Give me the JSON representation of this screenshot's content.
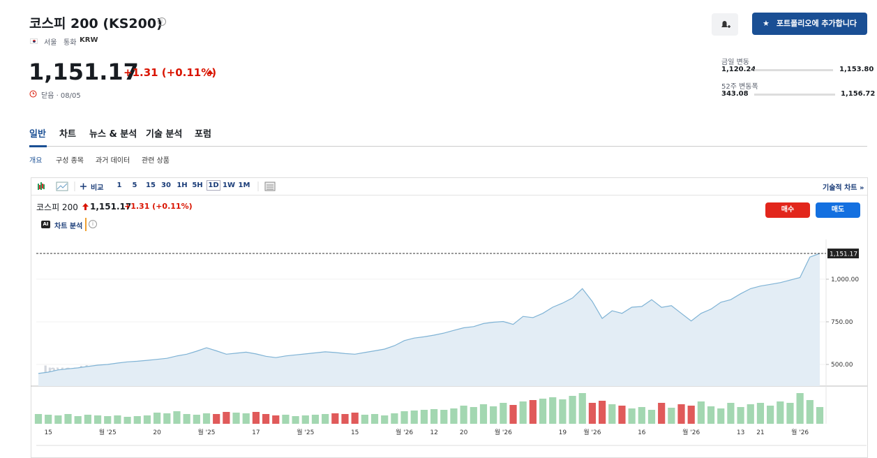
{
  "header": {
    "title": "코스피 200 (KS200)",
    "exchange": "서울",
    "currency_label": "통화",
    "currency": "KRW"
  },
  "quote": {
    "price": "1,151.17",
    "change": "+1.31 (+0.11%)",
    "status": "닫음 · 08/05"
  },
  "actions": {
    "portfolio": "포트폴리오에 추가합니다"
  },
  "ranges": {
    "day": {
      "label": "금일 변동",
      "low": "1,120.24",
      "high": "1,153.80"
    },
    "week52": {
      "label": "52주 변동폭",
      "low": "343.08",
      "high": "1,156.72"
    }
  },
  "tabs": [
    "일반",
    "차트",
    "뉴스 & 분석",
    "기술 분석",
    "포럼"
  ],
  "subtabs": [
    "개요",
    "구성 종목",
    "과거 데이터",
    "관련 상품"
  ],
  "toolbar": {
    "compare": "비교",
    "intervals": [
      "1",
      "5",
      "15",
      "30",
      "1H",
      "5H",
      "1D",
      "1W",
      "1M"
    ],
    "technical": "기술적 차트 »"
  },
  "legend": {
    "name": "코스피 200",
    "price": "1,151.17",
    "change": "+1.31 (+0.11%)"
  },
  "buttons": {
    "buy": "매수",
    "sell": "매도",
    "ai": "차트 분석"
  },
  "chart_data": {
    "type": "line",
    "watermark": "Investing.com",
    "categories": [
      null,
      "15",
      null,
      null,
      null,
      null,
      null,
      "월 '25",
      null,
      null,
      null,
      null,
      "20",
      null,
      null,
      null,
      null,
      "월 '25",
      null,
      null,
      null,
      null,
      "17",
      null,
      null,
      null,
      null,
      "월 '25",
      null,
      null,
      null,
      null,
      "15",
      null,
      null,
      null,
      null,
      "월 '26",
      null,
      null,
      "12",
      null,
      null,
      "20",
      null,
      null,
      null,
      "월 '26",
      null,
      null,
      null,
      null,
      null,
      "19",
      null,
      null,
      "월 '26",
      null,
      null,
      null,
      null,
      "16",
      null,
      null,
      null,
      null,
      "월 '26",
      null,
      null,
      null,
      null,
      "13",
      null,
      "21",
      null,
      null,
      null,
      "월 '26",
      null,
      null
    ],
    "series": [
      {
        "name": "코스피 200",
        "color": "#7fb3d5",
        "fill": "#e3edf5",
        "values": [
          447,
          455,
          468,
          474,
          480,
          488,
          496,
          500,
          508,
          515,
          519,
          524,
          530,
          536,
          550,
          560,
          578,
          598,
          580,
          560,
          566,
          572,
          562,
          548,
          540,
          550,
          556,
          562,
          568,
          574,
          570,
          564,
          560,
          570,
          580,
          590,
          610,
          640,
          655,
          662,
          672,
          684,
          700,
          715,
          722,
          740,
          748,
          752,
          735,
          782,
          775,
          800,
          836,
          860,
          890,
          945,
          870,
          770,
          815,
          800,
          836,
          840,
          880,
          835,
          845,
          800,
          755,
          800,
          825,
          865,
          880,
          915,
          945,
          960,
          970,
          980,
          995,
          1010,
          1130,
          1151.17
        ]
      }
    ],
    "last_value_label": "1,151.17",
    "volume": {
      "up_color": "#a3d7b1",
      "down_color": "#e05a5a",
      "values": [
        14,
        13,
        12,
        14,
        11,
        13,
        12,
        11,
        12,
        10,
        11,
        12,
        16,
        15,
        18,
        14,
        13,
        15,
        14,
        17,
        16,
        15,
        17,
        14,
        12,
        13,
        11,
        12,
        13,
        14,
        15,
        14,
        16,
        13,
        14,
        12,
        15,
        18,
        19,
        20,
        21,
        20,
        22,
        26,
        24,
        28,
        25,
        30,
        27,
        32,
        34,
        36,
        38,
        35,
        40,
        44,
        30,
        33,
        28,
        26,
        22,
        24,
        20,
        30,
        23,
        28,
        26,
        32,
        25,
        22,
        30,
        24,
        28,
        30,
        26,
        32,
        30,
        44,
        34,
        24
      ]
    },
    "ylim": [
      373,
      1225
    ],
    "yticks": [
      {
        "value": 500,
        "label": "500.00"
      },
      {
        "value": 750,
        "label": "750.00"
      },
      {
        "value": 1000,
        "label": "1,000.00"
      }
    ],
    "grid": true
  }
}
